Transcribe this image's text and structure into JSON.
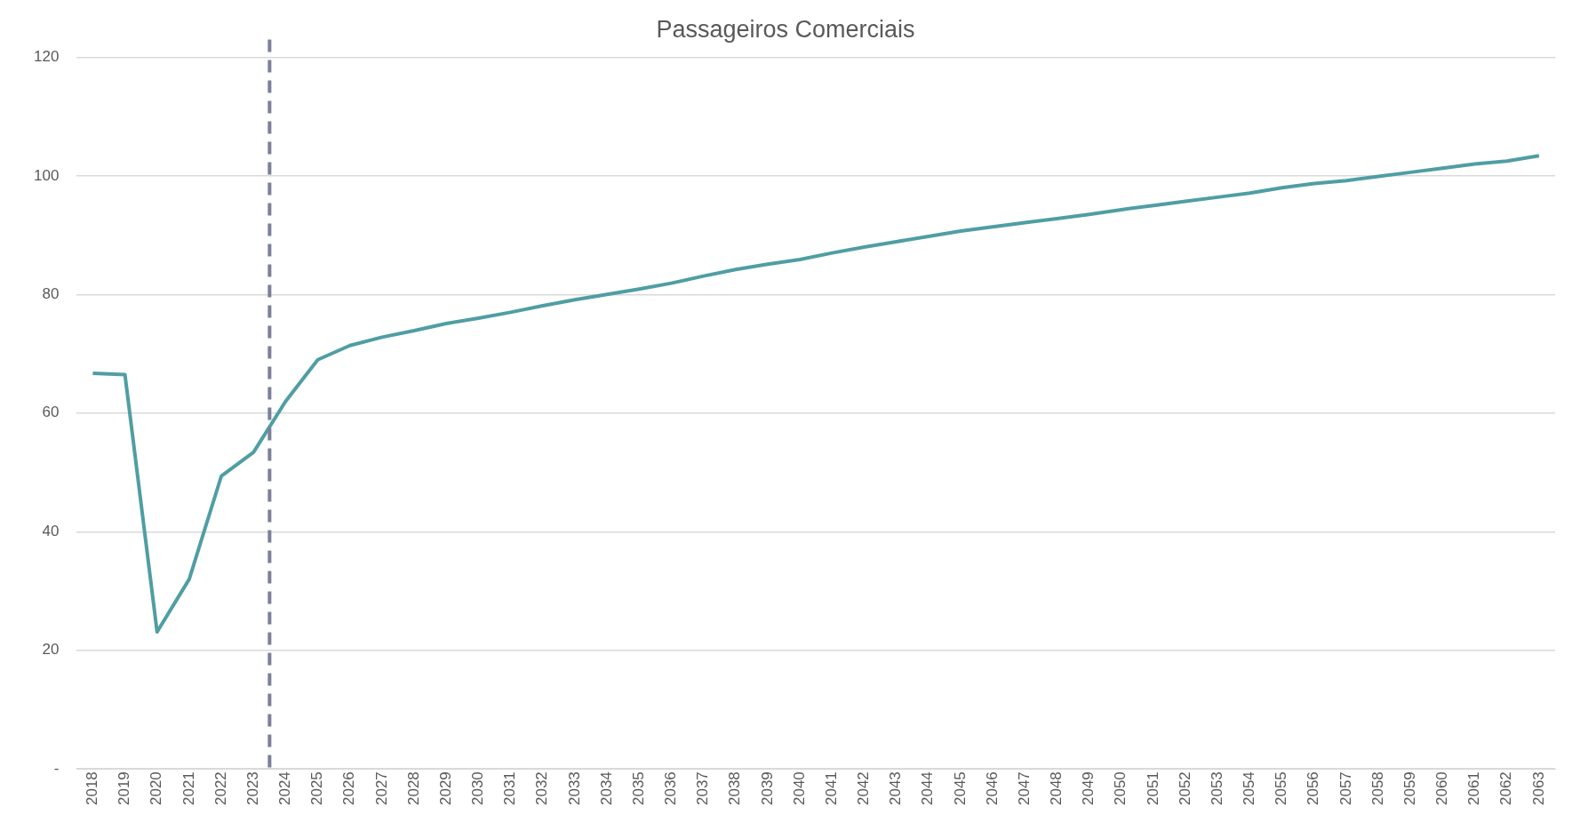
{
  "chart_data": {
    "type": "line",
    "title": "Passageiros Comerciais",
    "x": [
      2018,
      2019,
      2020,
      2021,
      2022,
      2023,
      2024,
      2025,
      2026,
      2027,
      2028,
      2029,
      2030,
      2031,
      2032,
      2033,
      2034,
      2035,
      2036,
      2037,
      2038,
      2039,
      2040,
      2041,
      2042,
      2043,
      2044,
      2045,
      2046,
      2047,
      2048,
      2049,
      2050,
      2051,
      2052,
      2053,
      2054,
      2055,
      2056,
      2057,
      2058,
      2059,
      2060,
      2061,
      2062,
      2063
    ],
    "series": [
      {
        "color": "#4f9ea3",
        "values": [
          66.7,
          66.5,
          23.1,
          32,
          49.4,
          53.4,
          62,
          69,
          71.4,
          72.8,
          73.9,
          75.1,
          76,
          77,
          78.1,
          79.1,
          80,
          80.9,
          81.9,
          83.1,
          84.2,
          85.1,
          85.9,
          87,
          88,
          88.9,
          89.8,
          90.7,
          91.4,
          92.1,
          92.8,
          93.5,
          94.3,
          95,
          95.7,
          96.4,
          97.1,
          98,
          98.7,
          99.2,
          99.9,
          100.6,
          101.3,
          102,
          102.5,
          103.4
        ]
      }
    ],
    "xlim": [
      2017.5,
      2063.5
    ],
    "xticks": [
      2018,
      2019,
      2020,
      2021,
      2022,
      2023,
      2024,
      2025,
      2026,
      2027,
      2028,
      2029,
      2030,
      2031,
      2032,
      2033,
      2034,
      2035,
      2036,
      2037,
      2038,
      2039,
      2040,
      2041,
      2042,
      2043,
      2044,
      2045,
      2046,
      2047,
      2048,
      2049,
      2050,
      2051,
      2052,
      2053,
      2054,
      2055,
      2056,
      2057,
      2058,
      2059,
      2060,
      2061,
      2062,
      2063
    ],
    "ylim": [
      0,
      120
    ],
    "yticks": [
      {
        "value": 0,
        "label": "-"
      },
      20,
      40,
      60,
      80,
      100,
      120
    ],
    "grid": "y",
    "legend": false,
    "marker": "none",
    "line_style": "solid",
    "ref_lines": [
      {
        "axis": "x",
        "value": 2023.5,
        "color": "#7b8098",
        "line_style": "dashed"
      }
    ]
  }
}
